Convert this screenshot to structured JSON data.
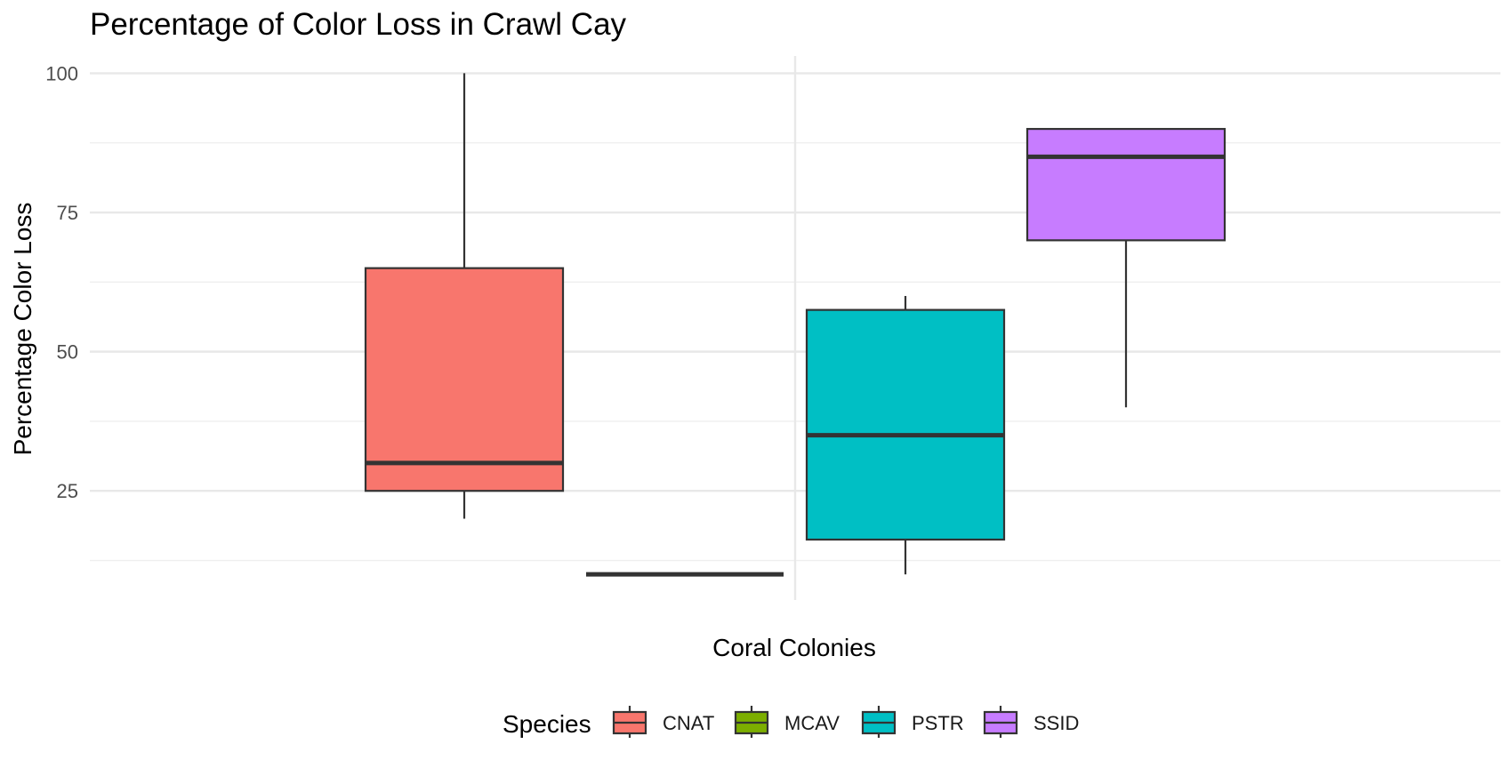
{
  "chart_data": {
    "type": "boxplot",
    "title": "Percentage of Color Loss in Crawl Cay",
    "xlabel": "Coral Colonies",
    "ylabel": "Percentage Color Loss",
    "ylim": [
      5.4,
      103.1
    ],
    "yticks": [
      25,
      50,
      75,
      100
    ],
    "yticks_minor": [
      12.5,
      37.5,
      62.5,
      87.5
    ],
    "grid": true,
    "legend": {
      "title": "Species",
      "position": "bottom"
    },
    "series": [
      {
        "name": "CNAT",
        "color": "#F8766D",
        "min": 20,
        "q1": 25,
        "median": 30,
        "q3": 65,
        "max": 100
      },
      {
        "name": "MCAV",
        "color": "#7CAE00",
        "min": 10,
        "q1": 10,
        "median": 10,
        "q3": 10,
        "max": 10
      },
      {
        "name": "PSTR",
        "color": "#00BFC4",
        "min": 10,
        "q1": 16.25,
        "median": 35,
        "q3": 57.5,
        "max": 60
      },
      {
        "name": "SSID",
        "color": "#C77CFF",
        "min": 40,
        "q1": 70,
        "median": 85,
        "q3": 90,
        "max": 90
      }
    ]
  }
}
